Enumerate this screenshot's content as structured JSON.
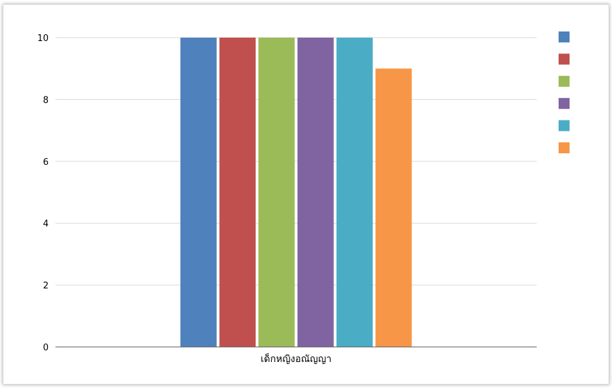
{
  "chart_data": {
    "type": "bar",
    "title": "",
    "xlabel": "",
    "ylabel": "",
    "categories": [
      "เด็กหญิงอณัญญา"
    ],
    "series": [
      {
        "values": [
          10
        ],
        "color": "#4f81bd"
      },
      {
        "values": [
          10
        ],
        "color": "#c0504d"
      },
      {
        "values": [
          10
        ],
        "color": "#9bbb59"
      },
      {
        "values": [
          10
        ],
        "color": "#8064a2"
      },
      {
        "values": [
          10
        ],
        "color": "#4bacc6"
      },
      {
        "values": [
          9
        ],
        "color": "#f79646"
      }
    ],
    "ylim": [
      0,
      10
    ],
    "yticks": [
      "0",
      "2",
      "4",
      "6",
      "8",
      "10"
    ],
    "grid": true,
    "legend_position": "top-right"
  }
}
